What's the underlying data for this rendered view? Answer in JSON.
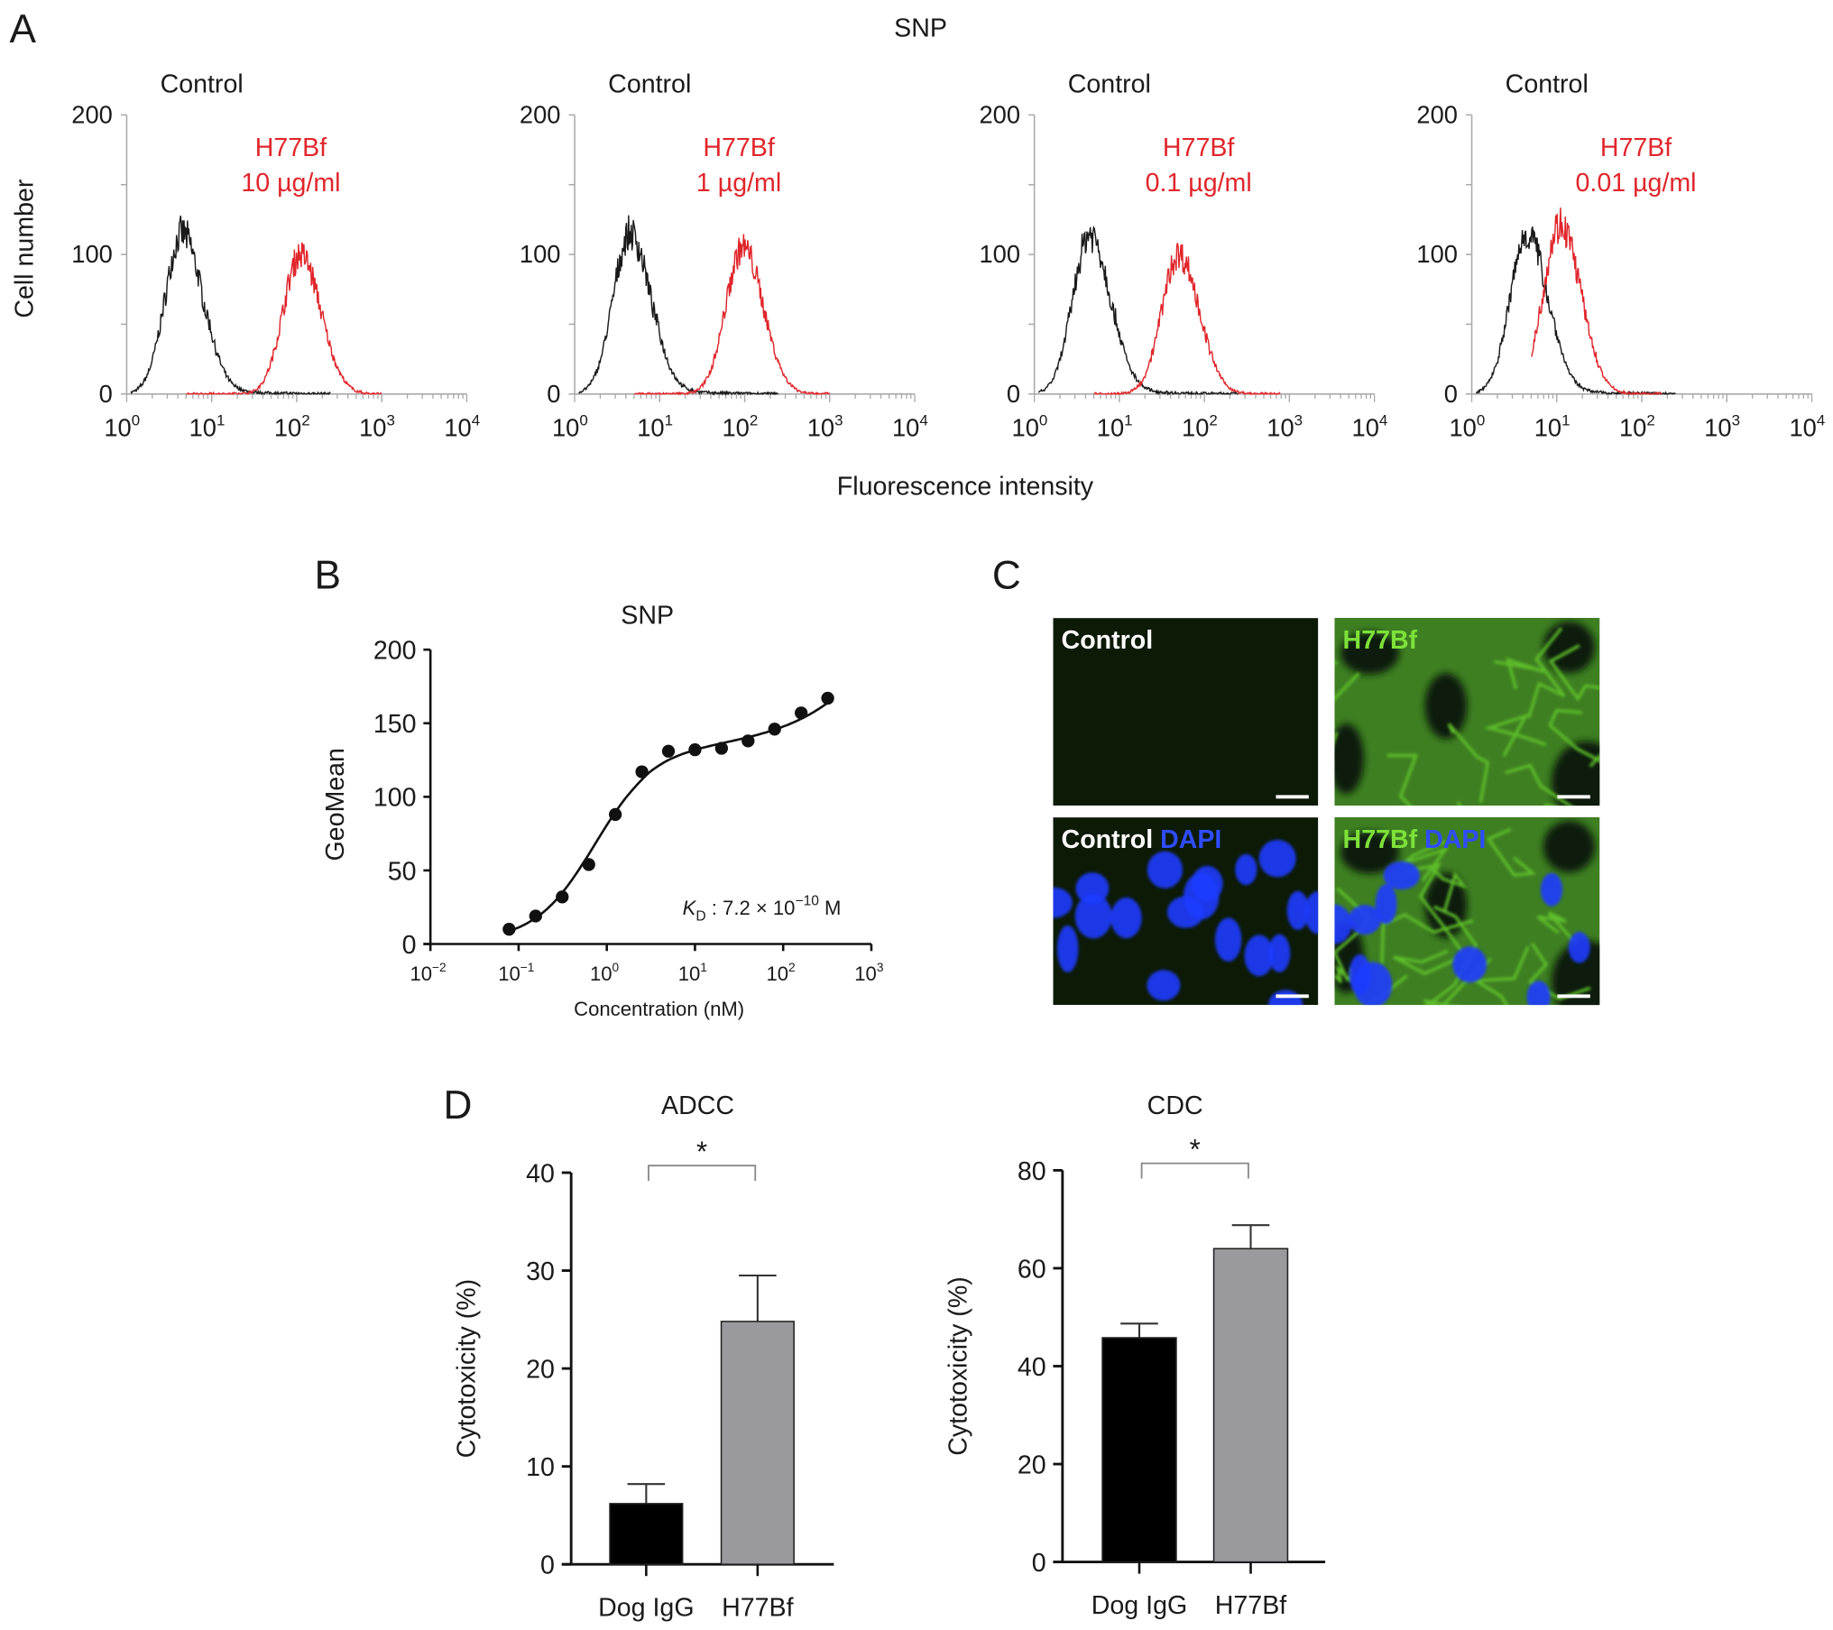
{
  "panel_labels": {
    "a": "A",
    "b": "B",
    "c": "C",
    "d": "D"
  },
  "panel_a": {
    "title": "SNP",
    "y_label": "Cell number",
    "x_label": "Fluorescence intensity"
  },
  "panel_c": {
    "images": [
      {
        "label": "Control",
        "label2": ""
      },
      {
        "label": "H77Bf",
        "label2": ""
      },
      {
        "label": "Control",
        "label2": "DAPI"
      },
      {
        "label": "H77Bf",
        "label2": "DAPI"
      }
    ]
  },
  "colors": {
    "control": "#1a1a1a",
    "h77bf": "#e0262b",
    "bar_dog_igg": "#000000",
    "bar_h77bf": "#9a9a9e",
    "green_stain": "#5fbf2a",
    "dapi": "#1e3cff",
    "h77bf_label_c": "#7ee03a"
  },
  "chart_data": [
    {
      "type": "area",
      "id": "hist1",
      "top_label": "Control",
      "label_line1": "H77Bf",
      "label_line2": "10 µg/ml",
      "x_scale": "log",
      "xlim": [
        1,
        10000
      ],
      "ylim": [
        0,
        200
      ],
      "yticks": [
        "0",
        "100",
        "200"
      ],
      "xticks": [
        {
          "b": "10",
          "e": "0"
        },
        {
          "b": "10",
          "e": "1"
        },
        {
          "b": "10",
          "e": "2"
        },
        {
          "b": "10",
          "e": "3"
        },
        {
          "b": "10",
          "e": "4"
        }
      ],
      "series": [
        {
          "name": "Control",
          "peak_x": 4.5,
          "peak_y": 115
        },
        {
          "name": "H77Bf",
          "peak_x": 110,
          "peak_y": 100
        }
      ]
    },
    {
      "type": "area",
      "id": "hist2",
      "top_label": "Control",
      "label_line1": "H77Bf",
      "label_line2": "1 µg/ml",
      "x_scale": "log",
      "xlim": [
        1,
        10000
      ],
      "ylim": [
        0,
        200
      ],
      "yticks": [
        "0",
        "100",
        "200"
      ],
      "xticks": [
        {
          "b": "10",
          "e": "0"
        },
        {
          "b": "10",
          "e": "1"
        },
        {
          "b": "10",
          "e": "2"
        },
        {
          "b": "10",
          "e": "3"
        },
        {
          "b": "10",
          "e": "4"
        }
      ],
      "series": [
        {
          "name": "Control",
          "peak_x": 4.5,
          "peak_y": 115
        },
        {
          "name": "H77Bf",
          "peak_x": 95,
          "peak_y": 105
        }
      ]
    },
    {
      "type": "area",
      "id": "hist3",
      "top_label": "Control",
      "label_line1": "H77Bf",
      "label_line2": "0.1 µg/ml",
      "x_scale": "log",
      "xlim": [
        1,
        10000
      ],
      "ylim": [
        0,
        200
      ],
      "yticks": [
        "0",
        "100",
        "200"
      ],
      "xticks": [
        {
          "b": "10",
          "e": "0"
        },
        {
          "b": "10",
          "e": "1"
        },
        {
          "b": "10",
          "e": "2"
        },
        {
          "b": "10",
          "e": "3"
        },
        {
          "b": "10",
          "e": "4"
        }
      ],
      "series": [
        {
          "name": "Control",
          "peak_x": 4.5,
          "peak_y": 115
        },
        {
          "name": "H77Bf",
          "peak_x": 50,
          "peak_y": 100
        }
      ]
    },
    {
      "type": "area",
      "id": "hist4",
      "top_label": "Control",
      "label_line1": "H77Bf",
      "label_line2": "0.01 µg/ml",
      "x_scale": "log",
      "xlim": [
        1,
        10000
      ],
      "ylim": [
        0,
        200
      ],
      "yticks": [
        "0",
        "100",
        "200"
      ],
      "xticks": [
        {
          "b": "10",
          "e": "0"
        },
        {
          "b": "10",
          "e": "1"
        },
        {
          "b": "10",
          "e": "2"
        },
        {
          "b": "10",
          "e": "3"
        },
        {
          "b": "10",
          "e": "4"
        }
      ],
      "series": [
        {
          "name": "Control",
          "peak_x": 4.5,
          "peak_y": 115
        },
        {
          "name": "H77Bf",
          "peak_x": 11,
          "peak_y": 122
        }
      ]
    },
    {
      "type": "scatter",
      "id": "binding",
      "title": "SNP",
      "xlabel": "Concentration (nM)",
      "ylabel": "GeoMean",
      "x_scale": "log",
      "xlim": [
        0.01,
        1000
      ],
      "ylim": [
        0,
        200
      ],
      "yticks": [
        "0",
        "50",
        "100",
        "150",
        "200"
      ],
      "xticks": [
        {
          "b": "10",
          "e": "−2"
        },
        {
          "b": "10",
          "e": "−1"
        },
        {
          "b": "10",
          "e": "0"
        },
        {
          "b": "10",
          "e": "1"
        },
        {
          "b": "10",
          "e": "2"
        },
        {
          "b": "10",
          "e": "3"
        }
      ],
      "x": [
        0.078,
        0.156,
        0.3125,
        0.625,
        1.25,
        2.5,
        5,
        10,
        20,
        40,
        80,
        160,
        320
      ],
      "y": [
        10,
        19,
        32,
        54,
        88,
        117,
        131,
        132,
        133,
        138,
        146,
        157,
        167
      ],
      "annotation": {
        "k": "K",
        "sub": "D",
        "text": " : 7.2 × 10",
        "exp": "−10",
        "unit": " M"
      }
    },
    {
      "type": "bar",
      "id": "adcc",
      "title": "ADCC",
      "ylabel": "Cytotoxicity (%)",
      "ylim": [
        0,
        40
      ],
      "yticks": [
        "0",
        "10",
        "20",
        "30",
        "40"
      ],
      "categories": [
        "Dog IgG",
        "H77Bf"
      ],
      "values": [
        6.2,
        24.8
      ],
      "errors": [
        2.0,
        4.7
      ],
      "significance": "*"
    },
    {
      "type": "bar",
      "id": "cdc",
      "title": "CDC",
      "ylabel": "Cytotoxicity (%)",
      "ylim": [
        0,
        80
      ],
      "yticks": [
        "0",
        "20",
        "40",
        "60",
        "80"
      ],
      "categories": [
        "Dog IgG",
        "H77Bf"
      ],
      "values": [
        45.8,
        64.0
      ],
      "errors": [
        2.9,
        4.8
      ],
      "significance": "*"
    }
  ]
}
